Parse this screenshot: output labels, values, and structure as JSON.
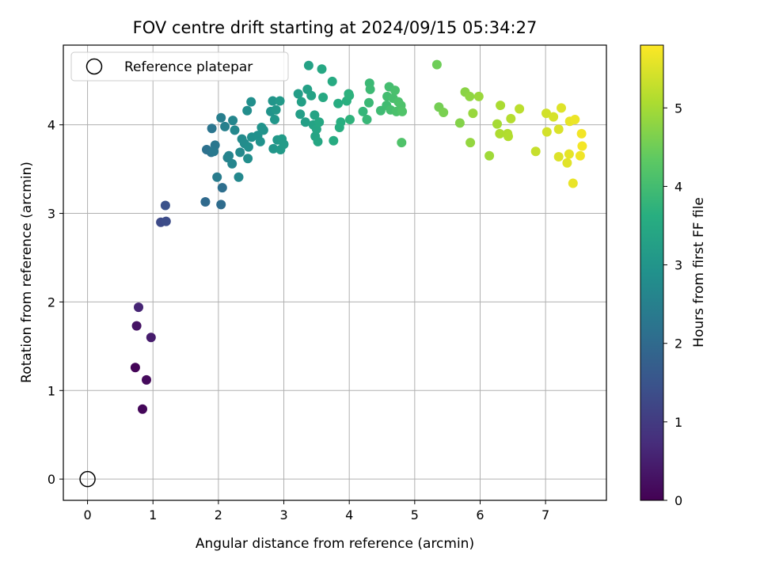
{
  "chart_data": {
    "type": "scatter",
    "title": "FOV centre drift starting at 2024/09/15 05:34:27",
    "xlabel": "Angular distance from reference (arcmin)",
    "ylabel": "Rotation from reference (arcmin)",
    "xlim": [
      -0.37,
      7.93
    ],
    "ylim": [
      -0.24,
      4.9
    ],
    "xticks": [
      "0",
      "1",
      "2",
      "3",
      "4",
      "5",
      "6",
      "7"
    ],
    "yticks": [
      "0",
      "1",
      "2",
      "3",
      "4"
    ],
    "grid": true,
    "colormap": "viridis",
    "colorbar": {
      "label": "Hours from first FF file",
      "range": [
        0,
        5.8
      ],
      "ticks": [
        "0",
        "1",
        "2",
        "3",
        "4",
        "5"
      ]
    },
    "legend": {
      "position": "top-left",
      "entries": [
        "Reference platepar"
      ]
    },
    "reference_point": {
      "x": 0,
      "y": 0
    },
    "points": [
      [
        0.73,
        1.26,
        0.05
      ],
      [
        0.84,
        0.79,
        0.1
      ],
      [
        0.9,
        1.12,
        0.15
      ],
      [
        0.75,
        1.73,
        0.3
      ],
      [
        0.97,
        1.6,
        0.45
      ],
      [
        0.78,
        1.94,
        0.6
      ],
      [
        1.12,
        2.9,
        1.3
      ],
      [
        1.2,
        2.91,
        1.35
      ],
      [
        1.19,
        3.09,
        1.45
      ],
      [
        1.8,
        3.13,
        2.0
      ],
      [
        2.04,
        3.1,
        2.05
      ],
      [
        2.06,
        3.29,
        2.1
      ],
      [
        1.82,
        3.72,
        2.15
      ],
      [
        1.89,
        3.69,
        2.2
      ],
      [
        1.9,
        3.96,
        2.25
      ],
      [
        1.95,
        3.77,
        2.3
      ],
      [
        1.93,
        3.7,
        2.35
      ],
      [
        1.98,
        3.41,
        2.4
      ],
      [
        2.04,
        4.08,
        2.45
      ],
      [
        2.1,
        3.98,
        2.5
      ],
      [
        2.14,
        3.63,
        2.55
      ],
      [
        2.16,
        3.65,
        2.6
      ],
      [
        2.21,
        3.56,
        2.62
      ],
      [
        2.22,
        4.05,
        2.65
      ],
      [
        2.25,
        3.94,
        2.68
      ],
      [
        2.31,
        3.41,
        2.7
      ],
      [
        2.33,
        3.69,
        2.72
      ],
      [
        2.36,
        3.84,
        2.75
      ],
      [
        2.4,
        3.79,
        2.78
      ],
      [
        2.44,
        4.16,
        2.8
      ],
      [
        2.45,
        3.62,
        2.82
      ],
      [
        2.46,
        3.75,
        2.84
      ],
      [
        2.5,
        4.26,
        2.86
      ],
      [
        2.51,
        3.86,
        2.88
      ],
      [
        2.6,
        3.88,
        2.9
      ],
      [
        2.64,
        3.81,
        2.92
      ],
      [
        2.66,
        3.97,
        2.94
      ],
      [
        2.69,
        3.94,
        2.96
      ],
      [
        2.8,
        4.15,
        2.98
      ],
      [
        2.83,
        4.27,
        3.0
      ],
      [
        2.84,
        3.73,
        3.02
      ],
      [
        2.86,
        4.06,
        3.04
      ],
      [
        2.88,
        4.17,
        3.06
      ],
      [
        2.9,
        3.83,
        3.08
      ],
      [
        2.94,
        4.27,
        3.1
      ],
      [
        2.95,
        3.72,
        3.12
      ],
      [
        2.97,
        3.84,
        3.14
      ],
      [
        3.0,
        3.78,
        3.16
      ],
      [
        3.22,
        4.35,
        3.2
      ],
      [
        3.25,
        4.12,
        3.22
      ],
      [
        3.27,
        4.26,
        3.24
      ],
      [
        3.33,
        4.03,
        3.26
      ],
      [
        3.36,
        4.4,
        3.28
      ],
      [
        3.38,
        4.67,
        3.3
      ],
      [
        3.42,
        4.33,
        3.32
      ],
      [
        3.45,
        4.0,
        3.34
      ],
      [
        3.47,
        4.11,
        3.36
      ],
      [
        3.48,
        3.87,
        3.38
      ],
      [
        3.5,
        3.95,
        3.4
      ],
      [
        3.52,
        3.81,
        3.42
      ],
      [
        3.54,
        4.03,
        3.44
      ],
      [
        3.58,
        4.63,
        3.46
      ],
      [
        3.6,
        4.31,
        3.48
      ],
      [
        3.74,
        4.49,
        3.52
      ],
      [
        3.76,
        3.82,
        3.55
      ],
      [
        3.83,
        4.24,
        3.58
      ],
      [
        3.85,
        3.97,
        3.6
      ],
      [
        3.87,
        4.03,
        3.62
      ],
      [
        3.96,
        4.27,
        3.65
      ],
      [
        3.99,
        4.35,
        3.68
      ],
      [
        4.0,
        4.33,
        3.7
      ],
      [
        4.01,
        4.06,
        3.72
      ],
      [
        4.21,
        4.15,
        3.8
      ],
      [
        4.27,
        4.06,
        3.85
      ],
      [
        4.3,
        4.25,
        3.88
      ],
      [
        4.31,
        4.47,
        3.9
      ],
      [
        4.32,
        4.4,
        3.92
      ],
      [
        4.48,
        4.16,
        3.95
      ],
      [
        4.57,
        4.22,
        3.98
      ],
      [
        4.58,
        4.32,
        4.0
      ],
      [
        4.61,
        4.43,
        4.02
      ],
      [
        4.63,
        4.17,
        4.04
      ],
      [
        4.67,
        4.3,
        4.06
      ],
      [
        4.7,
        4.39,
        4.08
      ],
      [
        4.72,
        4.15,
        4.1
      ],
      [
        4.75,
        4.26,
        4.12
      ],
      [
        4.79,
        4.22,
        4.14
      ],
      [
        4.8,
        3.8,
        4.16
      ],
      [
        4.81,
        4.15,
        4.18
      ],
      [
        5.34,
        4.68,
        4.5
      ],
      [
        5.37,
        4.2,
        4.55
      ],
      [
        5.44,
        4.14,
        4.6
      ],
      [
        5.69,
        4.02,
        4.7
      ],
      [
        5.77,
        4.37,
        4.75
      ],
      [
        5.84,
        4.32,
        4.8
      ],
      [
        5.85,
        3.8,
        4.85
      ],
      [
        5.89,
        4.13,
        4.88
      ],
      [
        5.98,
        4.32,
        4.9
      ],
      [
        6.14,
        3.65,
        4.95
      ],
      [
        6.26,
        4.01,
        5.0
      ],
      [
        6.31,
        4.22,
        5.05
      ],
      [
        6.3,
        3.9,
        5.08
      ],
      [
        6.42,
        3.9,
        5.1
      ],
      [
        6.43,
        3.87,
        5.12
      ],
      [
        6.47,
        4.07,
        5.15
      ],
      [
        6.6,
        4.18,
        5.2
      ],
      [
        6.85,
        3.7,
        5.3
      ],
      [
        7.01,
        4.13,
        5.4
      ],
      [
        7.02,
        3.92,
        5.42
      ],
      [
        7.12,
        4.09,
        5.45
      ],
      [
        7.2,
        3.95,
        5.48
      ],
      [
        7.2,
        3.64,
        5.5
      ],
      [
        7.24,
        4.19,
        5.52
      ],
      [
        7.33,
        3.57,
        5.55
      ],
      [
        7.36,
        3.67,
        5.58
      ],
      [
        7.37,
        4.04,
        5.6
      ],
      [
        7.42,
        3.34,
        5.62
      ],
      [
        7.45,
        4.06,
        5.65
      ],
      [
        7.53,
        3.65,
        5.68
      ],
      [
        7.55,
        3.9,
        5.7
      ],
      [
        7.56,
        3.76,
        5.72
      ]
    ]
  }
}
